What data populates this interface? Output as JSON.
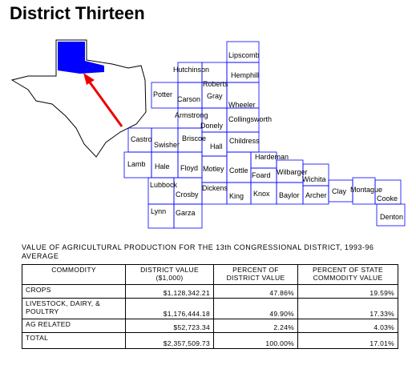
{
  "header": {
    "title": "District Thirteen"
  },
  "map": {
    "counties": [
      "Lipscomb",
      "Hutchinson",
      "Hemphill",
      "Roberts",
      "Potter",
      "Carson",
      "Gray",
      "Wheeler",
      "Armstrong",
      "Collingsworth",
      "Donely",
      "Castro",
      "Swisher",
      "Briscoe",
      "Childress",
      "Hall",
      "Hardeman",
      "Lamb",
      "Hale",
      "Floyd",
      "Motley",
      "Cottle",
      "Foard",
      "Wilbarger",
      "Wichita",
      "Clay",
      "Montague",
      "Cooke",
      "Lubbock",
      "Dickens",
      "King",
      "Knox",
      "Baylor",
      "Archer",
      "Crosby",
      "Denton",
      "Lynn",
      "Garza"
    ]
  },
  "table": {
    "caption": "VALUE OF AGRICULTURAL PRODUCTION FOR THE 13th CONGRESSIONAL DISTRICT, 1993-96 AVERAGE",
    "headers": [
      "COMMODITY",
      "DISTRICT VALUE ($1,000)",
      "PERCENT OF DISTRICT VALUE",
      "PERCENT OF STATE COMMODITY VALUE"
    ],
    "rows": [
      [
        "CROPS",
        "$1,128,342.21",
        "47.86%",
        "19.59%"
      ],
      [
        "LIVESTOCK, DAIRY, & POULTRY",
        "$1,176,444.18",
        "49.90%",
        "17.33%"
      ],
      [
        "AG RELATED",
        "$52,723.34",
        "2.24%",
        "4.03%"
      ],
      [
        "TOTAL",
        "$2,357,509.73",
        "100.00%",
        "17.01%"
      ]
    ]
  }
}
